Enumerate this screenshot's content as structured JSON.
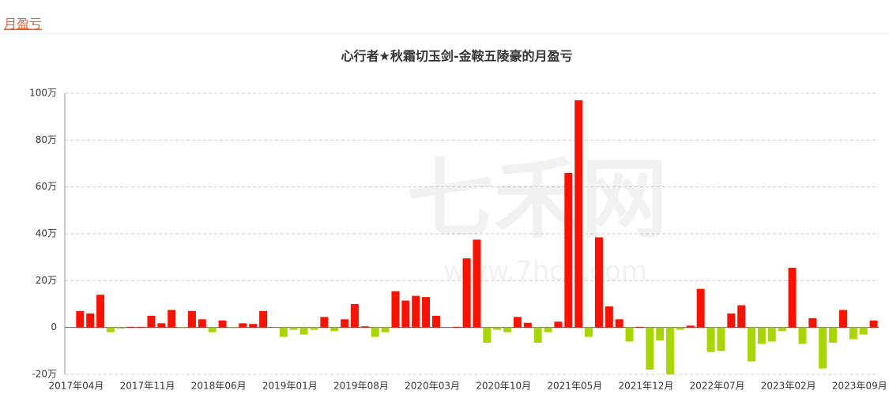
{
  "header": {
    "tab": "月盈亏"
  },
  "chart_data": {
    "type": "bar",
    "title": "心行者★秋霜切玉剑-金鞍五陵豪的月盈亏",
    "watermark": "七禾网",
    "watermark_url": "www.7hcn.com",
    "categories": [
      "2017年04月",
      null,
      null,
      null,
      null,
      null,
      null,
      "2017年11月",
      null,
      null,
      null,
      null,
      null,
      null,
      "2018年06月",
      null,
      null,
      null,
      null,
      null,
      null,
      "2019年01月",
      null,
      null,
      null,
      null,
      null,
      null,
      "2019年08月",
      null,
      null,
      null,
      null,
      null,
      null,
      "2020年03月",
      null,
      null,
      null,
      null,
      null,
      null,
      "2020年10月",
      null,
      null,
      null,
      null,
      null,
      null,
      "2021年05月",
      null,
      null,
      null,
      null,
      null,
      null,
      "2021年12月",
      null,
      null,
      null,
      null,
      null,
      null,
      "2022年07月",
      null,
      null,
      null,
      null,
      null,
      null,
      "2023年02月",
      null,
      null,
      null,
      null,
      null,
      null,
      "2023年09月",
      null,
      null
    ],
    "values": [
      0,
      7,
      6,
      14,
      -2,
      -0.5,
      0.3,
      0.3,
      5,
      1.8,
      7.5,
      -0.3,
      7,
      3.5,
      -2,
      3,
      -0.3,
      1.8,
      1.5,
      7,
      0,
      -4,
      -1,
      -3,
      -1,
      4.5,
      -1.5,
      3.5,
      10,
      0.5,
      -4,
      -2,
      15.5,
      11.5,
      13.5,
      13,
      5,
      0,
      0.3,
      29.5,
      37.5,
      -6.5,
      -1,
      -2,
      4.5,
      2,
      -6.5,
      -2,
      2.5,
      66,
      97,
      -4,
      38.5,
      9,
      3.5,
      -6,
      0.3,
      -18,
      -5.5,
      -20,
      -1,
      0.8,
      16.5,
      -10.5,
      -10,
      6,
      9.5,
      -14.5,
      -7,
      -6,
      -1.5,
      25.5,
      -7,
      4,
      -17.5,
      -6.5,
      7.5,
      -5,
      -3,
      3
    ],
    "positive_color": "#ff1100",
    "negative_color": "#a8d600",
    "ylim": [
      -20,
      100
    ],
    "yticks": [
      {
        "value": -20,
        "label": "-20万"
      },
      0,
      {
        "value": 20,
        "label": "20万"
      },
      {
        "value": 40,
        "label": "40万"
      },
      {
        "value": 60,
        "label": "60万"
      },
      {
        "value": 80,
        "label": "80万"
      },
      {
        "value": 100,
        "label": "100万"
      }
    ],
    "grid": true
  }
}
